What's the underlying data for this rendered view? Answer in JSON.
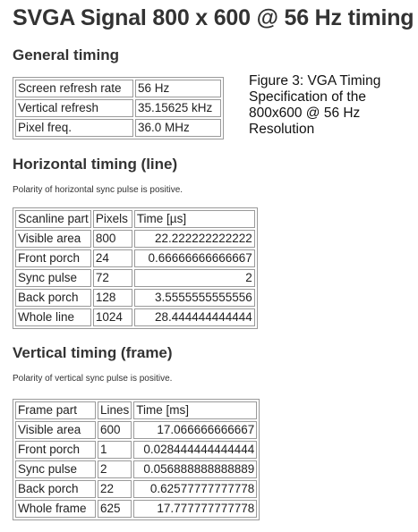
{
  "title": "SVGA Signal 800 x 600 @ 56 Hz timing",
  "caption": "Figure 3: VGA Timing Specification of the 800x600 @ 56 Hz Resolution",
  "general": {
    "heading": "General timing",
    "rows": [
      [
        "Screen refresh rate",
        "56 Hz"
      ],
      [
        "Vertical refresh",
        "35.15625 kHz"
      ],
      [
        "Pixel freq.",
        "36.0 MHz"
      ]
    ]
  },
  "horizontal": {
    "heading": "Horizontal timing (line)",
    "polarity": "Polarity of horizontal sync pulse is positive.",
    "headers": [
      "Scanline part",
      "Pixels",
      "Time [µs]"
    ],
    "rows": [
      [
        "Visible area",
        "800",
        "22.222222222222"
      ],
      [
        "Front porch",
        "24",
        "0.66666666666667"
      ],
      [
        "Sync pulse",
        "72",
        "2"
      ],
      [
        "Back porch",
        "128",
        "3.5555555555556"
      ],
      [
        "Whole line",
        "1024",
        "28.444444444444"
      ]
    ]
  },
  "vertical": {
    "heading": "Vertical timing (frame)",
    "polarity": "Polarity of vertical sync pulse is positive.",
    "headers": [
      "Frame part",
      "Lines",
      "Time [ms]"
    ],
    "rows": [
      [
        "Visible area",
        "600",
        "17.066666666667"
      ],
      [
        "Front porch",
        "1",
        "0.028444444444444"
      ],
      [
        "Sync pulse",
        "2",
        "0.056888888888889"
      ],
      [
        "Back porch",
        "22",
        "0.62577777777778"
      ],
      [
        "Whole frame",
        "625",
        "17.777777777778"
      ]
    ]
  }
}
